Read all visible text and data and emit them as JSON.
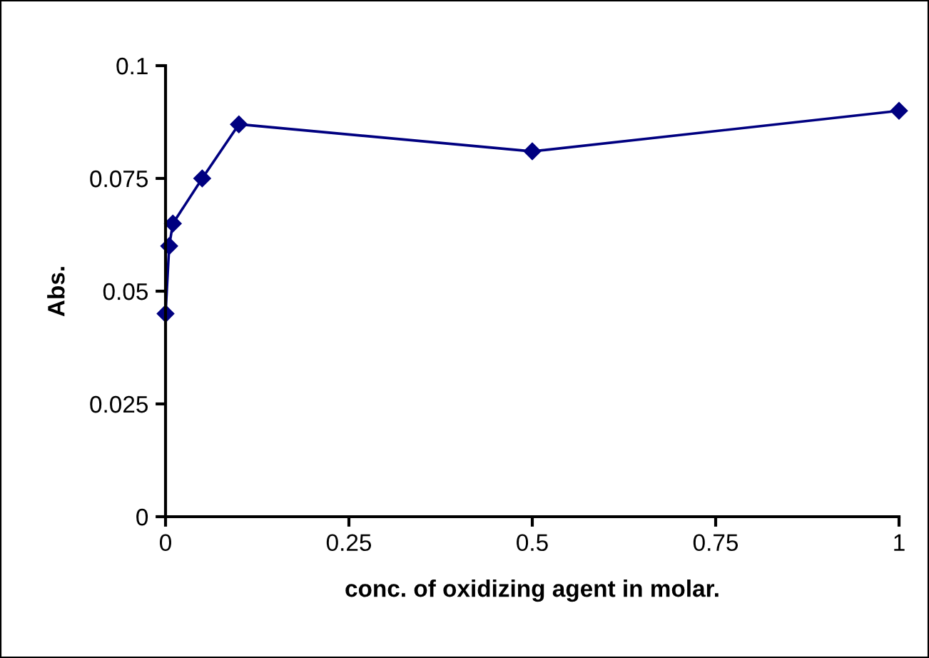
{
  "chart_data": {
    "type": "line",
    "xlabel": "conc. of oxidizing agent in molar.",
    "ylabel": "Abs.",
    "x": [
      0,
      0.005,
      0.01,
      0.05,
      0.1,
      0.5,
      1
    ],
    "series": [
      {
        "color": "#000080",
        "values": [
          0.045,
          0.06,
          0.065,
          0.075,
          0.087,
          0.081,
          0.09
        ]
      }
    ],
    "xlim": [
      0,
      1
    ],
    "ylim": [
      0,
      0.1
    ],
    "xticks": [
      0,
      0.25,
      0.5,
      0.75,
      1
    ],
    "yticks": [
      0,
      0.025,
      0.05,
      0.075,
      0.1
    ],
    "grid": false,
    "legend": false,
    "marker": "diamond",
    "line_style": "solid"
  }
}
